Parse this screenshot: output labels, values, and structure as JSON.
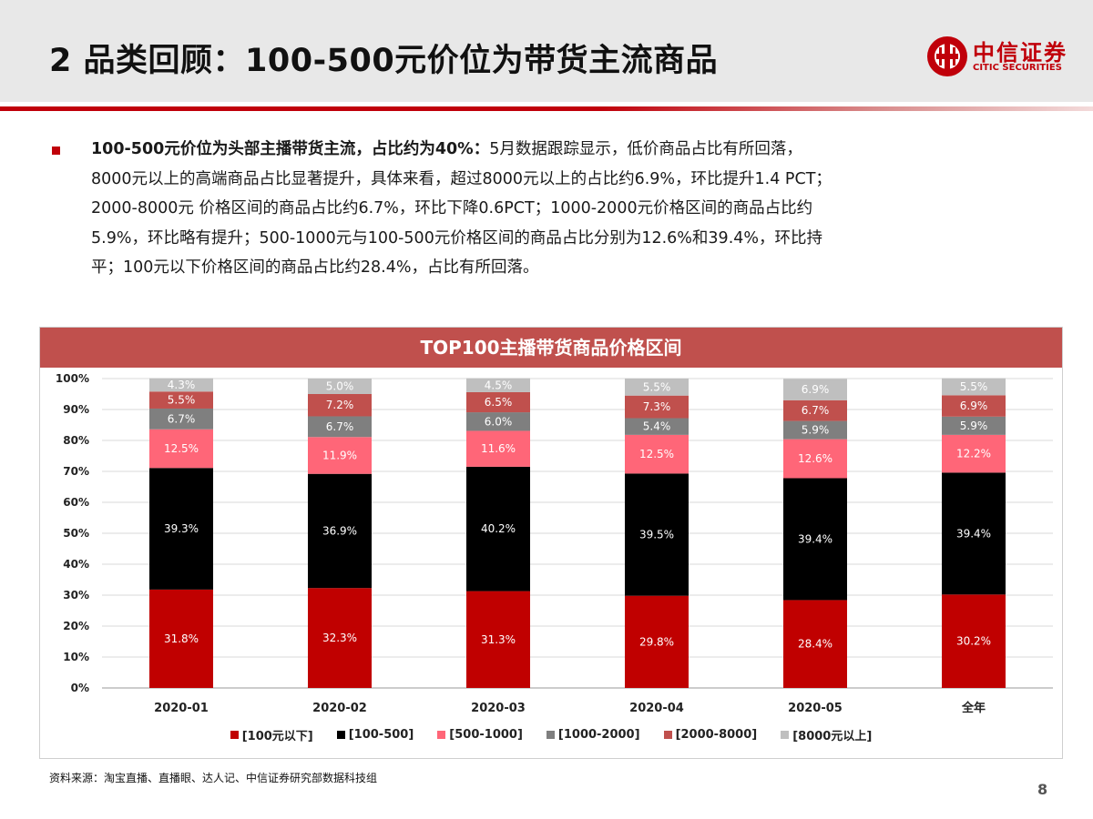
{
  "slide": {
    "title": "2 品类回顾：100-500元价位为带货主流商品",
    "logo_cn": "中信证券",
    "logo_en": "CITIC SECURITIES",
    "page_number": "8"
  },
  "body": {
    "lead_bold": "100-500元价位为头部主播带货主流，占比约为40%：",
    "line1_rest": "5月数据跟踪显示，低价商品占比有所回落，",
    "line2": "8000元以上的高端商品占比显著提升，具体来看，超过8000元以上的占比约6.9%，环比提升1.4 PCT；",
    "line3": "2000-8000元 价格区间的商品占比约6.7%，环比下降0.6PCT；1000-2000元价格区间的商品占比约",
    "line4": "5.9%，环比略有提升；500-1000元与100-500元价格区间的商品占比分别为12.6%和39.4%，环比持",
    "line5": "平；100元以下价格区间的商品占比约28.4%，占比有所回落。"
  },
  "source_note": "资料来源：淘宝直播、直播眼、达人记、中信证券研究部数据科技组",
  "colors": {
    "accent": "#c0000a",
    "title_bar": "#c0504d"
  },
  "chart_data": {
    "type": "bar",
    "stacked": true,
    "title": "TOP100主播带货商品价格区间",
    "categories": [
      "2020-01",
      "2020-02",
      "2020-03",
      "2020-04",
      "2020-05",
      "全年"
    ],
    "ylim": [
      0,
      100
    ],
    "y_ticks": [
      "0%",
      "10%",
      "20%",
      "30%",
      "40%",
      "50%",
      "60%",
      "70%",
      "80%",
      "90%",
      "100%"
    ],
    "grid": true,
    "legend_position": "bottom",
    "series": [
      {
        "name": "[100元以下]",
        "color": "#c00000",
        "label_color": "#ffffff",
        "values": [
          31.8,
          32.3,
          31.3,
          29.8,
          28.4,
          30.2
        ],
        "labels": [
          "31.8%",
          "32.3%",
          "31.3%",
          "29.8%",
          "28.4%",
          "30.2%"
        ]
      },
      {
        "name": "[100-500]",
        "color": "#000000",
        "label_color": "#ffffff",
        "values": [
          39.3,
          36.9,
          40.2,
          39.5,
          39.4,
          39.4
        ],
        "labels": [
          "39.3%",
          "36.9%",
          "40.2%",
          "39.5%",
          "39.4%",
          "39.4%"
        ]
      },
      {
        "name": "[500-1000]",
        "color": "#ff6678",
        "label_color": "#ffffff",
        "values": [
          12.5,
          11.9,
          11.6,
          12.5,
          12.6,
          12.2
        ],
        "labels": [
          "12.5%",
          "11.9%",
          "11.6%",
          "12.5%",
          "12.6%",
          "12.2%"
        ]
      },
      {
        "name": "[1000-2000]",
        "color": "#7f7f7f",
        "label_color": "#ffffff",
        "values": [
          6.7,
          6.7,
          6.0,
          5.4,
          5.9,
          5.9
        ],
        "labels": [
          "6.7%",
          "6.7%",
          "6.0%",
          "5.4%",
          "5.9%",
          "5.9%"
        ]
      },
      {
        "name": "[2000-8000]",
        "color": "#c0504d",
        "label_color": "#ffffff",
        "values": [
          5.5,
          7.2,
          6.5,
          7.3,
          6.7,
          6.9
        ],
        "labels": [
          "5.5%",
          "7.2%",
          "6.5%",
          "7.3%",
          "6.7%",
          "6.9%"
        ]
      },
      {
        "name": "[8000元以上]",
        "color": "#bfbfbf",
        "label_color": "#ffffff",
        "values": [
          4.3,
          5.0,
          4.5,
          5.5,
          6.9,
          5.5
        ],
        "labels": [
          "4.3%",
          "5.0%",
          "4.5%",
          "5.5%",
          "6.9%",
          "5.5%"
        ]
      }
    ]
  }
}
